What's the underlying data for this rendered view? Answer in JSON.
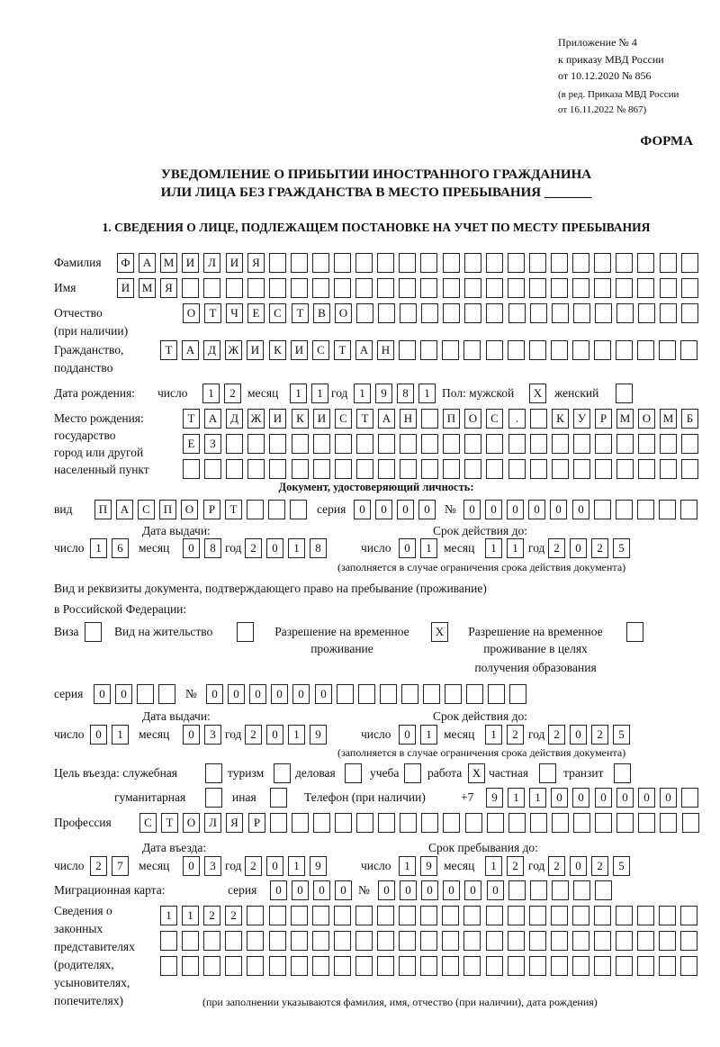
{
  "header": {
    "appendix": [
      "Приложение № 4",
      "к приказу МВД России",
      "от 10.12.2020 № 856"
    ],
    "revision": [
      "(в ред. Приказа МВД России",
      "от 16.11.2022 № 867)"
    ],
    "form_label": "ФОРМА",
    "title": [
      "УВЕДОМЛЕНИЕ О ПРИБЫТИИ ИНОСТРАННОГО ГРАЖДАНИНА",
      "ИЛИ ЛИЦА БЕЗ ГРАЖДАНСТВА В МЕСТО ПРЕБЫВАНИЯ _______"
    ],
    "section1": "1. СВЕДЕНИЯ О ЛИЦЕ, ПОДЛЕЖАЩЕМ ПОСТАНОВКЕ НА УЧЕТ ПО МЕСТУ ПРЕБЫВАНИЯ"
  },
  "labels": {
    "surname": "Фамилия",
    "name": "Имя",
    "patronymic": [
      "Отчество",
      "(при наличии)"
    ],
    "citizenship": [
      "Гражданство,",
      "подданство"
    ],
    "birth_date": "Дата рождения:",
    "day": "число",
    "month": "месяц",
    "year": "год",
    "sex": "Пол: мужской",
    "female": "женский",
    "birth_place": [
      "Место рождения:",
      "государство",
      "город или другой",
      "населенный пункт"
    ],
    "id_doc": "Документ, удостоверяющий личность:",
    "kind": "вид",
    "series": "серия",
    "number": "№",
    "issue_date": "Дата выдачи:",
    "valid_until": "Срок действия до:",
    "validity_note": "(заполняется в случае ограничения срока действия документа)",
    "residence_doc": [
      "Вид и реквизиты документа, подтверждающего право на пребывание (проживание)",
      "в Российской Федерации:"
    ],
    "visa": "Виза",
    "residence_permit": "Вид на жительство",
    "temp_residence": [
      "Разрешение на временное",
      "проживание"
    ],
    "temp_residence_edu": [
      "Разрешение на временное",
      "проживание в целях",
      "получения образования"
    ],
    "purpose": "Цель въезда: служебная",
    "tourism": "туризм",
    "business": "деловая",
    "study": "учеба",
    "work": "работа",
    "private": "частная",
    "transit": "транзит",
    "humanitarian": "гуманитарная",
    "other": "иная",
    "phone": "Телефон (при наличии)",
    "phone_prefix": "+7",
    "profession": "Профессия",
    "entry_date": "Дата въезда:",
    "stay_until": "Срок пребывания до:",
    "migration_card": "Миграционная карта:",
    "representatives": [
      "Сведения о",
      "законных",
      "представителях",
      "(родителях,",
      "усыновителях,",
      "попечителях)"
    ],
    "representatives_note": "(при заполнении указываются фамилия, имя, отчество (при наличии), дата рождения)"
  },
  "person": {
    "surname": [
      "Ф",
      "А",
      "М",
      "И",
      "Л",
      "И",
      "Я"
    ],
    "name": [
      "И",
      "М",
      "Я"
    ],
    "patronymic": [
      "О",
      "Т",
      "Ч",
      "Е",
      "С",
      "Т",
      "В",
      "О"
    ],
    "citizenship": [
      "Т",
      "А",
      "Д",
      "Ж",
      "И",
      "К",
      "И",
      "С",
      "Т",
      "А",
      "Н"
    ],
    "birth_day": [
      "1",
      "2"
    ],
    "birth_month": [
      "1",
      "1"
    ],
    "birth_year": [
      "1",
      "9",
      "8",
      "1"
    ],
    "sex_male": [
      "X"
    ],
    "sex_female": [],
    "birth_place_1": [
      "Т",
      "А",
      "Д",
      "Ж",
      "И",
      "К",
      "И",
      "С",
      "Т",
      "А",
      "Н",
      " ",
      "П",
      "О",
      "С",
      ".",
      " ",
      "К",
      "У",
      "Р",
      "М",
      "О",
      "М",
      "Б"
    ],
    "birth_place_2": [
      "Е",
      "З"
    ],
    "birth_place_3": []
  },
  "id_doc": {
    "kind": [
      "П",
      "А",
      "С",
      "П",
      "О",
      "Р",
      "Т"
    ],
    "series": [
      "0",
      "0",
      "0",
      "0"
    ],
    "number": [
      "0",
      "0",
      "0",
      "0",
      "0",
      "0"
    ],
    "issue_day": [
      "1",
      "6"
    ],
    "issue_month": [
      "0",
      "8"
    ],
    "issue_year": [
      "2",
      "0",
      "1",
      "8"
    ],
    "valid_day": [
      "0",
      "1"
    ],
    "valid_month": [
      "1",
      "1"
    ],
    "valid_year": [
      "2",
      "0",
      "2",
      "5"
    ]
  },
  "residence_doc": {
    "visa": [],
    "residence_permit": [],
    "temp_residence": [
      "X"
    ],
    "temp_residence_edu": [],
    "series": [
      "0",
      "0"
    ],
    "number": [
      "0",
      "0",
      "0",
      "0",
      "0",
      "0"
    ],
    "issue_day": [
      "0",
      "1"
    ],
    "issue_month": [
      "0",
      "3"
    ],
    "issue_year": [
      "2",
      "0",
      "1",
      "9"
    ],
    "valid_day": [
      "0",
      "1"
    ],
    "valid_month": [
      "1",
      "2"
    ],
    "valid_year": [
      "2",
      "0",
      "2",
      "5"
    ]
  },
  "purpose": {
    "official": [],
    "tourism": [],
    "business": [],
    "study": [],
    "work": [
      "X"
    ],
    "private": [],
    "transit": [],
    "humanitarian": [],
    "other": []
  },
  "phone": [
    "9",
    "1",
    "1",
    "0",
    "0",
    "0",
    "0",
    "0",
    "0"
  ],
  "profession": [
    "С",
    "Т",
    "О",
    "Л",
    "Я",
    "Р"
  ],
  "stay": {
    "entry_day": [
      "2",
      "7"
    ],
    "entry_month": [
      "0",
      "3"
    ],
    "entry_year": [
      "2",
      "0",
      "1",
      "9"
    ],
    "until_day": [
      "1",
      "9"
    ],
    "until_month": [
      "1",
      "2"
    ],
    "until_year": [
      "2",
      "0",
      "2",
      "5"
    ]
  },
  "migration_card": {
    "series": [
      "0",
      "0",
      "0",
      "0"
    ],
    "number": [
      "0",
      "0",
      "0",
      "0",
      "0",
      "0"
    ]
  },
  "representatives": {
    "row1": [
      "1",
      "1",
      "2",
      "2"
    ],
    "row2": [],
    "row3": []
  }
}
